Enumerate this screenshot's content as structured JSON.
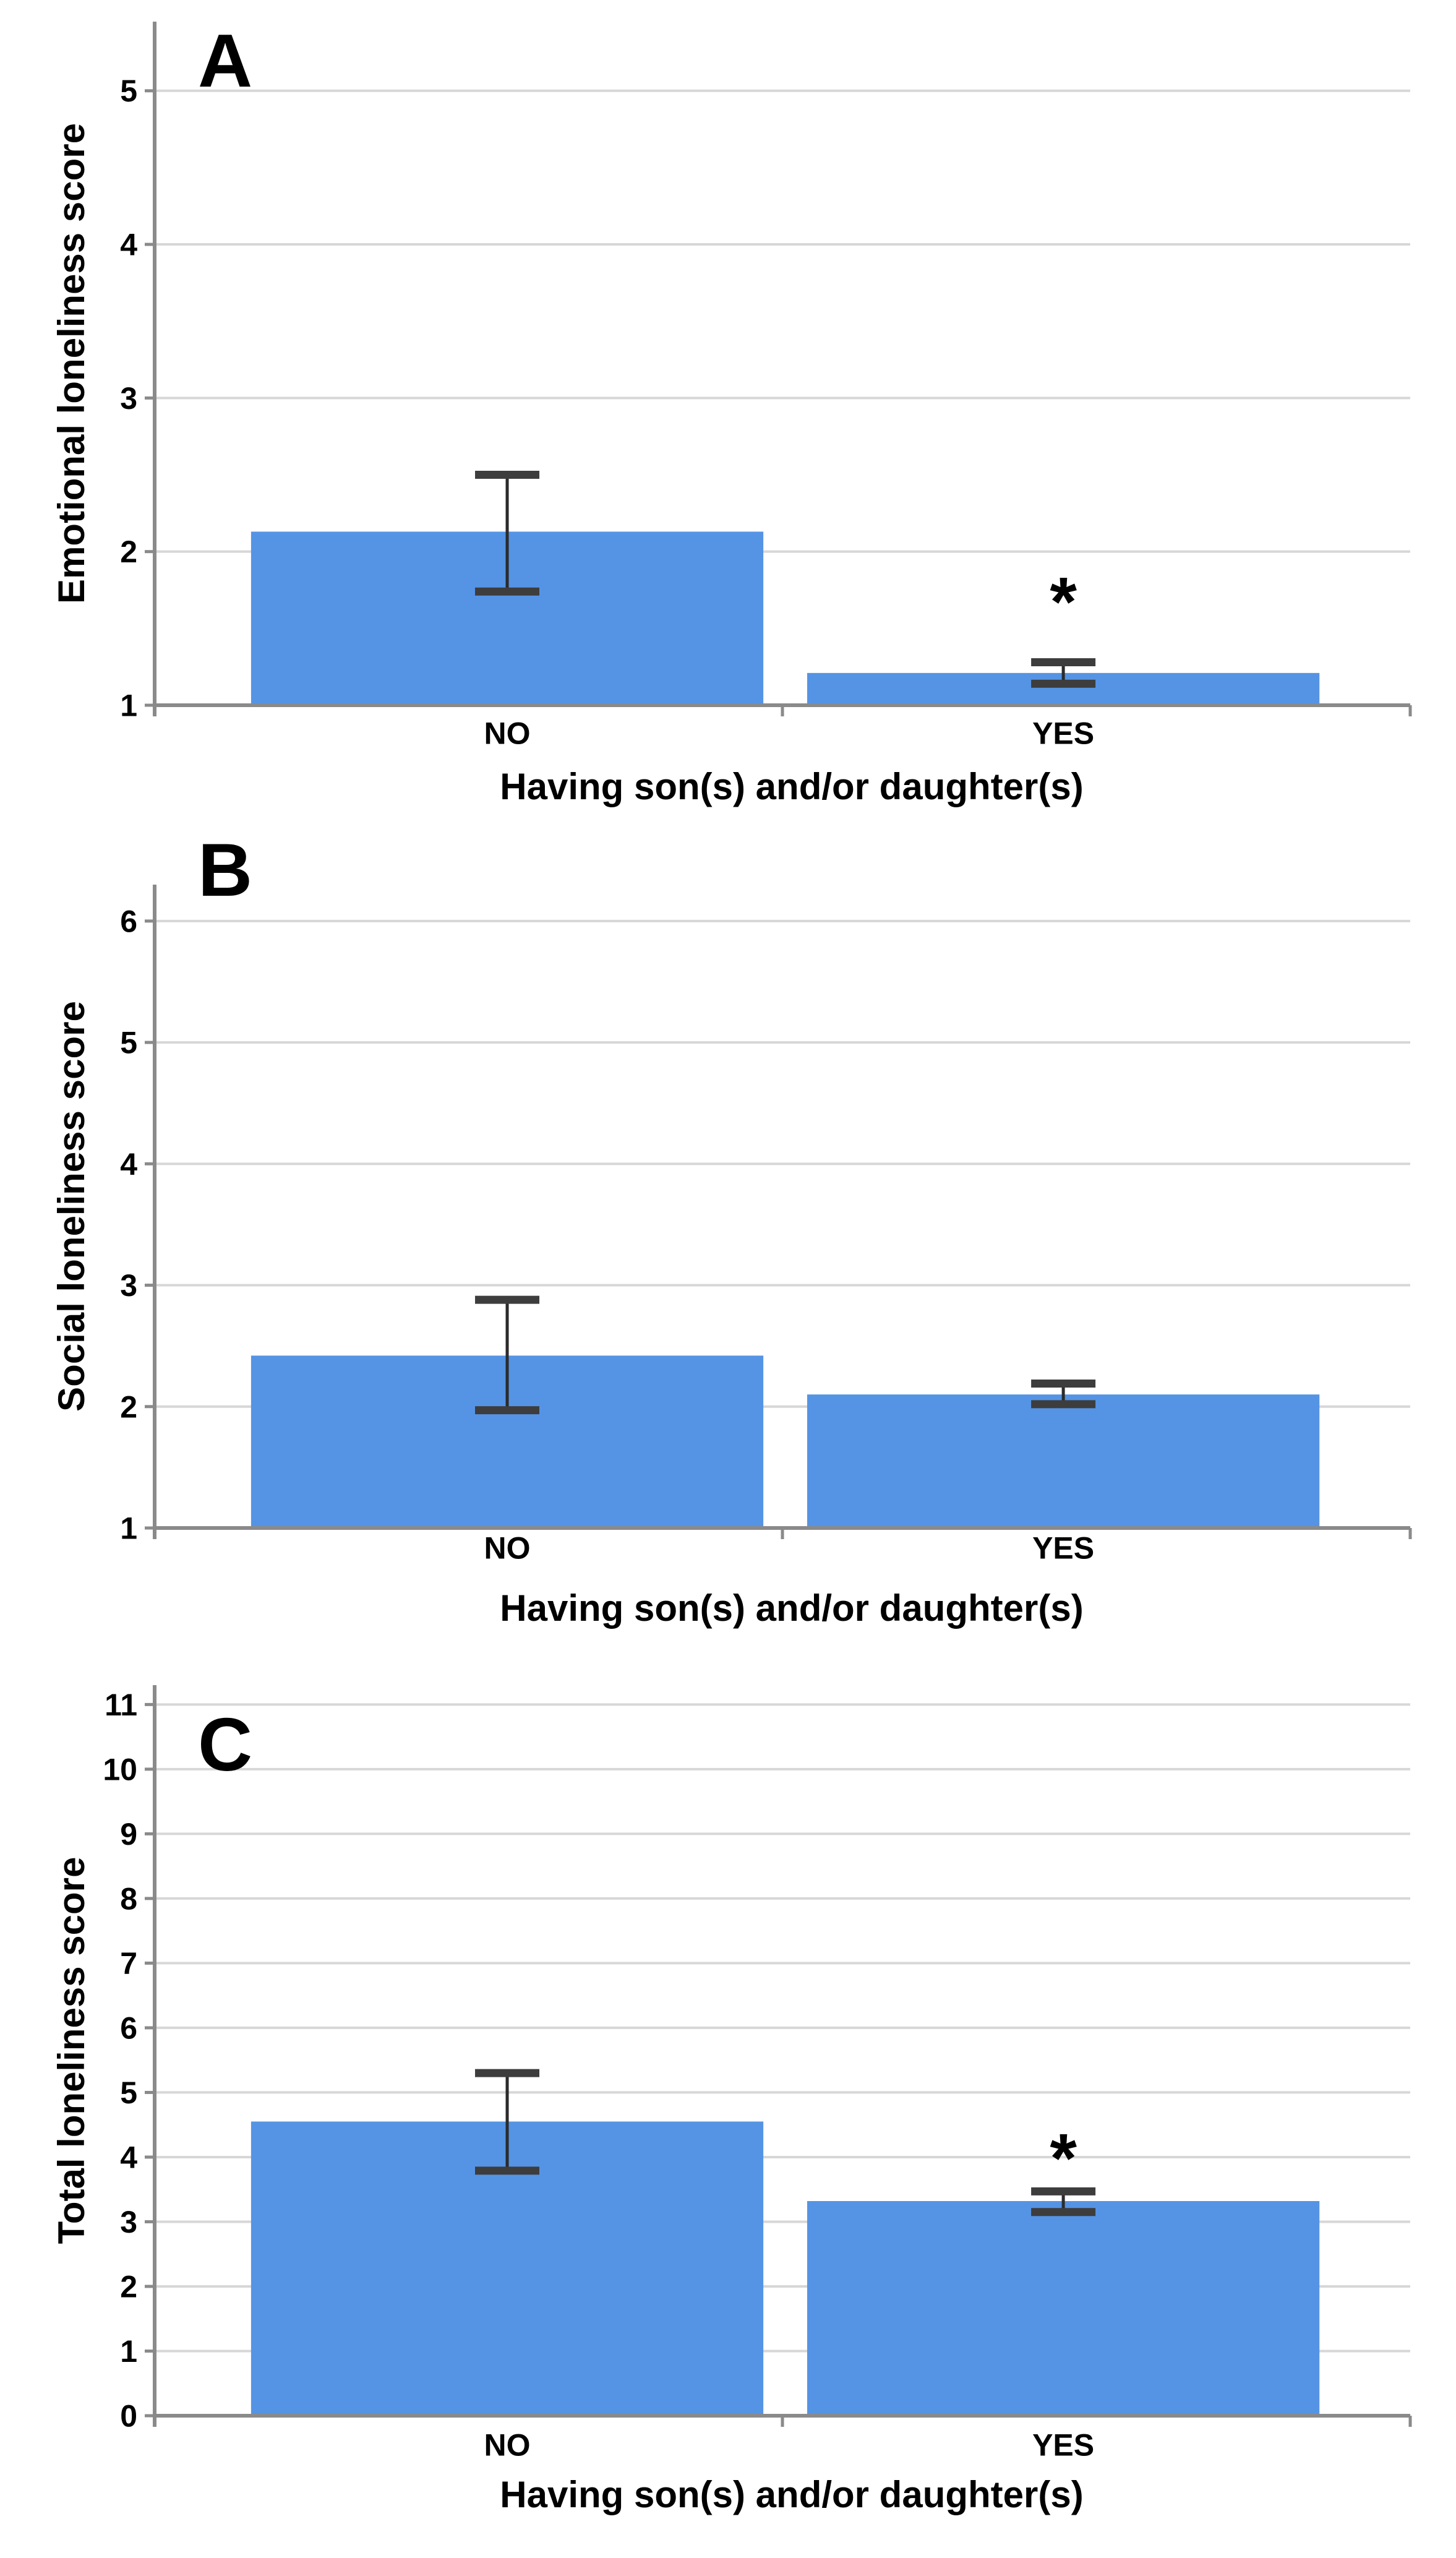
{
  "style": {
    "bar_color": "#5594E4",
    "grid_color": "#D7D7D7",
    "axis_color": "#8A8A8A",
    "error_line_color": "#2B2B2B",
    "error_cap_color": "#3D3D3D",
    "text_color": "#000000",
    "background": "#FFFFFF"
  },
  "shared": {
    "x_axis_title": "Having son(s) and/or daughter(s)",
    "categories": [
      "NO",
      "YES"
    ]
  },
  "chart_data": [
    {
      "type": "bar",
      "panel_label": "A",
      "title": "",
      "ylabel": "Emotional loneliness score",
      "xlabel": "Having son(s) and/or daughter(s)",
      "categories": [
        "NO",
        "YES"
      ],
      "values": [
        2.13,
        1.21
      ],
      "error_low": [
        1.74,
        1.14
      ],
      "error_high": [
        2.5,
        1.28
      ],
      "yticks": [
        1,
        2,
        3,
        4,
        5
      ],
      "ylim": [
        1,
        5.45
      ],
      "baseline": 1,
      "grid": true,
      "legend": "none",
      "significance": {
        "category_index": 1,
        "symbol": "*",
        "y": 1.8
      }
    },
    {
      "type": "bar",
      "panel_label": "B",
      "title": "",
      "ylabel": "Social loneliness score",
      "xlabel": "Having son(s) and/or daughter(s)",
      "categories": [
        "NO",
        "YES"
      ],
      "values": [
        2.42,
        2.1
      ],
      "error_low": [
        1.97,
        2.02
      ],
      "error_high": [
        2.88,
        2.19
      ],
      "yticks": [
        1,
        2,
        3,
        4,
        5,
        6
      ],
      "ylim": [
        1,
        6.3
      ],
      "baseline": 1,
      "grid": true,
      "legend": "none",
      "significance": null
    },
    {
      "type": "bar",
      "panel_label": "C",
      "title": "",
      "ylabel": "Total loneliness score",
      "xlabel": "Having son(s) and/or daughter(s)",
      "categories": [
        "NO",
        "YES"
      ],
      "values": [
        4.55,
        3.32
      ],
      "error_low": [
        3.79,
        3.15
      ],
      "error_high": [
        5.3,
        3.47
      ],
      "yticks": [
        0,
        1,
        2,
        3,
        4,
        5,
        6,
        7,
        8,
        9,
        10,
        11
      ],
      "ylim": [
        0,
        11.3
      ],
      "baseline": 0,
      "grid": true,
      "legend": "none",
      "significance": {
        "category_index": 1,
        "symbol": "*",
        "y": 4.28
      }
    }
  ]
}
